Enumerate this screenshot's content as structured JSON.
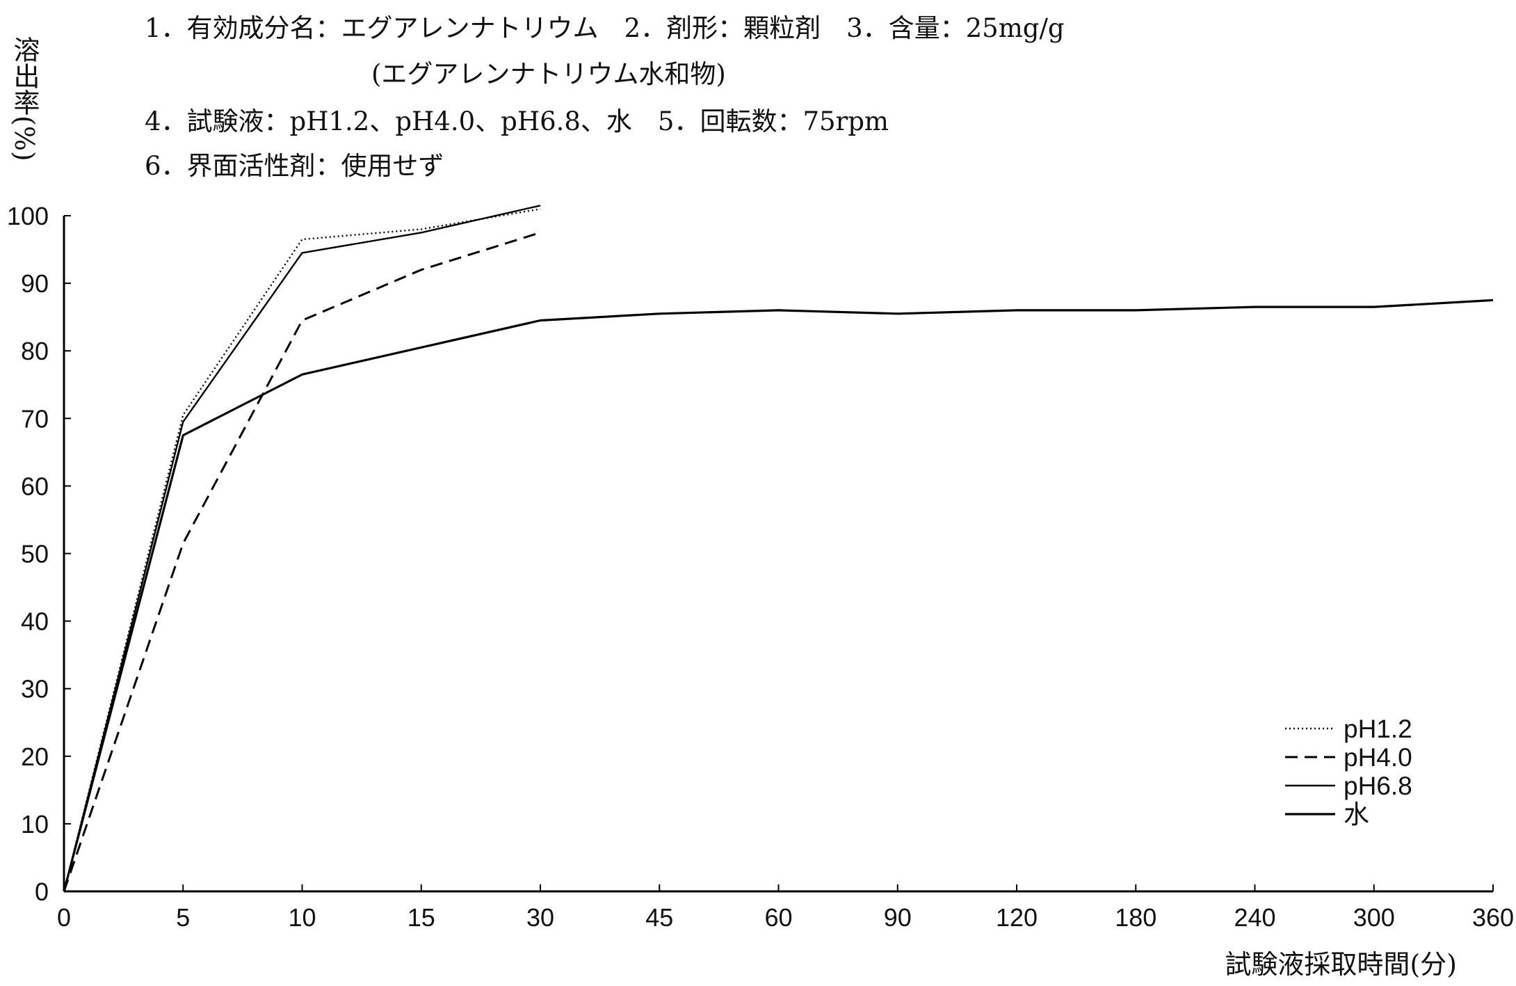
{
  "info": {
    "line1": "1．有効成分名：エグアレンナトリウム　2．剤形：顆粒剤　3．含量：25mg/g",
    "line2": "(エグアレンナトリウム水和物)",
    "line3": "4．試験液：pH1.2、pH4.0、pH6.8、水　5．回転数：75rpm",
    "line4": "6．界面活性剤：使用せず"
  },
  "chart_data": {
    "type": "line",
    "xlabel": "試験液採取時間(分)",
    "ylabel": "溶出率(%)",
    "x": [
      "0",
      "5",
      "10",
      "15",
      "30",
      "45",
      "60",
      "90",
      "120",
      "180",
      "240",
      "300",
      "360"
    ],
    "ylim": [
      0,
      100
    ],
    "yticks": [
      "0",
      "10",
      "20",
      "30",
      "40",
      "50",
      "60",
      "70",
      "80",
      "90",
      "100"
    ],
    "grid": false,
    "legend_position": "bottom-right",
    "series": [
      {
        "name": "pH1.2",
        "style": "dotted",
        "values": [
          0,
          70.5,
          96.5,
          98,
          101,
          null,
          null,
          null,
          null,
          null,
          null,
          null,
          null
        ]
      },
      {
        "name": "pH4.0",
        "style": "dashed",
        "values": [
          0,
          51.5,
          84.5,
          92,
          97.5,
          null,
          null,
          null,
          null,
          null,
          null,
          null,
          null
        ]
      },
      {
        "name": "pH6.8",
        "style": "solid-thin",
        "values": [
          0,
          69.5,
          94.5,
          97.5,
          101.5,
          null,
          null,
          null,
          null,
          null,
          null,
          null,
          null
        ]
      },
      {
        "name": "水",
        "style": "solid",
        "values": [
          0,
          67.5,
          76.5,
          80.5,
          84.5,
          85.5,
          86,
          85.5,
          86,
          86,
          86.5,
          86.5,
          87.5
        ]
      }
    ]
  }
}
